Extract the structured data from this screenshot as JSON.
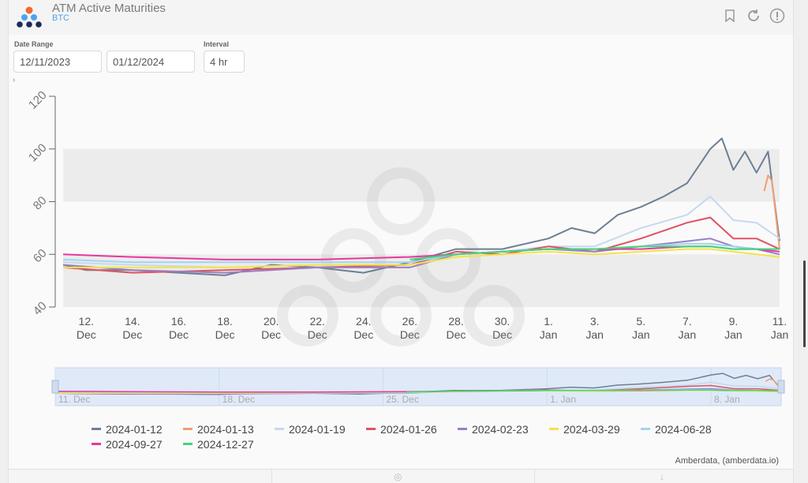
{
  "header": {
    "title": "ATM Active Maturities",
    "subtitle": "BTC",
    "icons": [
      "bookmark-icon",
      "refresh-icon",
      "info-icon"
    ]
  },
  "controls": {
    "date_range_label": "Date Range",
    "start_date": "12/11/2023",
    "end_date": "01/12/2024",
    "interval_label": "Interval",
    "interval": "4 hr"
  },
  "credit": "Amberdata, (amberdata.io)",
  "navigator_ticks": [
    "11. Dec",
    "18. Dec",
    "25. Dec",
    "1. Jan",
    "8. Jan"
  ],
  "chart_data": {
    "type": "line",
    "title": "",
    "xlabel": "",
    "ylabel": "",
    "x_tick_labels": [
      "12. Dec",
      "14. Dec",
      "16. Dec",
      "18. Dec",
      "20. Dec",
      "22. Dec",
      "24. Dec",
      "26. Dec",
      "28. Dec",
      "30. Dec",
      "1. Jan",
      "3. Jan",
      "5. Jan",
      "7. Jan",
      "9. Jan",
      "11. Jan"
    ],
    "x_tick_dates": [
      "2023-12-12",
      "2023-12-14",
      "2023-12-16",
      "2023-12-18",
      "2023-12-20",
      "2023-12-22",
      "2023-12-24",
      "2023-12-26",
      "2023-12-28",
      "2023-12-30",
      "2024-01-01",
      "2024-01-03",
      "2024-01-05",
      "2024-01-07",
      "2024-01-09",
      "2024-01-11"
    ],
    "xlim": [
      "2023-12-11",
      "2024-01-11"
    ],
    "ylim": [
      40,
      120
    ],
    "y_ticks": [
      40,
      60,
      80,
      100,
      120
    ],
    "legend_position": "bottom",
    "series": [
      {
        "name": "2024-01-12",
        "color": "#6d7f93",
        "x": [
          "2023-12-11",
          "2023-12-12",
          "2023-12-14",
          "2023-12-16",
          "2023-12-18",
          "2023-12-20",
          "2023-12-22",
          "2023-12-24",
          "2023-12-26",
          "2023-12-28",
          "2023-12-30",
          "2024-01-01",
          "2024-01-02",
          "2024-01-03",
          "2024-01-04",
          "2024-01-05",
          "2024-01-06",
          "2024-01-07",
          "2024-01-08",
          "2024-01-08T12:00",
          "2024-01-09",
          "2024-01-09T12:00",
          "2024-01-10",
          "2024-01-10T12:00",
          "2024-01-11"
        ],
        "y": [
          56,
          54,
          54,
          53,
          52,
          56,
          55,
          53,
          57,
          62,
          62,
          66,
          70,
          68,
          75,
          78,
          82,
          87,
          100,
          104,
          92,
          99,
          91,
          99,
          65
        ]
      },
      {
        "name": "2024-01-13",
        "color": "#f0a070",
        "x": [
          "2024-01-10T08:00",
          "2024-01-10T12:00",
          "2024-01-10T16:00",
          "2024-01-11"
        ],
        "y": [
          84,
          90,
          88,
          62
        ]
      },
      {
        "name": "2024-01-19",
        "color": "#c5d9ef",
        "x": [
          "2023-12-11",
          "2023-12-14",
          "2023-12-18",
          "2023-12-22",
          "2023-12-26",
          "2023-12-28",
          "2023-12-30",
          "2024-01-01",
          "2024-01-03",
          "2024-01-05",
          "2024-01-07",
          "2024-01-08",
          "2024-01-09",
          "2024-01-10",
          "2024-01-11"
        ],
        "y": [
          57,
          56,
          55,
          56,
          56,
          60,
          61,
          63,
          63,
          70,
          75,
          82,
          73,
          72,
          66
        ]
      },
      {
        "name": "2024-01-26",
        "color": "#e05262",
        "x": [
          "2023-12-11",
          "2023-12-14",
          "2023-12-18",
          "2023-12-22",
          "2023-12-26",
          "2023-12-28",
          "2023-12-30",
          "2024-01-01",
          "2024-01-03",
          "2024-01-05",
          "2024-01-07",
          "2024-01-08",
          "2024-01-09",
          "2024-01-10",
          "2024-01-11"
        ],
        "y": [
          55,
          53,
          54,
          55,
          56,
          61,
          60,
          63,
          61,
          66,
          72,
          74,
          66,
          66,
          62
        ]
      },
      {
        "name": "2024-02-23",
        "color": "#9b7fc4",
        "x": [
          "2023-12-11",
          "2023-12-14",
          "2023-12-18",
          "2023-12-22",
          "2023-12-26",
          "2023-12-28",
          "2023-12-30",
          "2024-01-01",
          "2024-01-03",
          "2024-01-05",
          "2024-01-07",
          "2024-01-08",
          "2024-01-09",
          "2024-01-10",
          "2024-01-11"
        ],
        "y": [
          56,
          54,
          53,
          55,
          55,
          60,
          61,
          62,
          61,
          63,
          65,
          66,
          63,
          62,
          60
        ]
      },
      {
        "name": "2024-03-29",
        "color": "#f2e44a",
        "x": [
          "2023-12-11",
          "2023-12-14",
          "2023-12-18",
          "2023-12-22",
          "2023-12-26",
          "2023-12-28",
          "2023-12-30",
          "2024-01-01",
          "2024-01-03",
          "2024-01-05",
          "2024-01-07",
          "2024-01-08",
          "2024-01-09",
          "2024-01-10",
          "2024-01-11"
        ],
        "y": [
          55,
          55,
          55,
          56,
          56,
          59,
          60,
          61,
          60,
          61,
          62,
          62,
          61,
          60,
          59
        ]
      },
      {
        "name": "2024-06-28",
        "color": "#9fd5f2",
        "x": [
          "2023-12-11",
          "2023-12-14",
          "2023-12-18",
          "2023-12-22",
          "2023-12-26",
          "2023-12-28",
          "2023-12-30",
          "2024-01-01",
          "2024-01-03",
          "2024-01-05",
          "2024-01-07",
          "2024-01-08",
          "2024-01-09",
          "2024-01-10",
          "2024-01-11"
        ],
        "y": [
          58,
          57,
          57,
          57,
          57,
          60,
          61,
          62,
          62,
          63,
          64,
          64,
          63,
          62,
          62
        ]
      },
      {
        "name": "2024-09-27",
        "color": "#e8389c",
        "x": [
          "2023-12-11",
          "2023-12-14",
          "2023-12-18",
          "2023-12-22",
          "2023-12-26",
          "2023-12-28",
          "2023-12-30",
          "2024-01-01",
          "2024-01-03",
          "2024-01-05",
          "2024-01-07",
          "2024-01-08",
          "2024-01-09",
          "2024-01-10",
          "2024-01-11"
        ],
        "y": [
          60,
          59,
          58,
          58,
          59,
          60,
          61,
          62,
          62,
          62,
          63,
          63,
          62,
          62,
          61
        ]
      },
      {
        "name": "2024-12-27",
        "color": "#3fd87a",
        "x": [
          "2023-12-26",
          "2023-12-28",
          "2023-12-30",
          "2024-01-01",
          "2024-01-03",
          "2024-01-05",
          "2024-01-07",
          "2024-01-08",
          "2024-01-09",
          "2024-01-10",
          "2024-01-11"
        ],
        "y": [
          58,
          60,
          61,
          62,
          62,
          63,
          63,
          63,
          62,
          62,
          62
        ]
      }
    ]
  }
}
